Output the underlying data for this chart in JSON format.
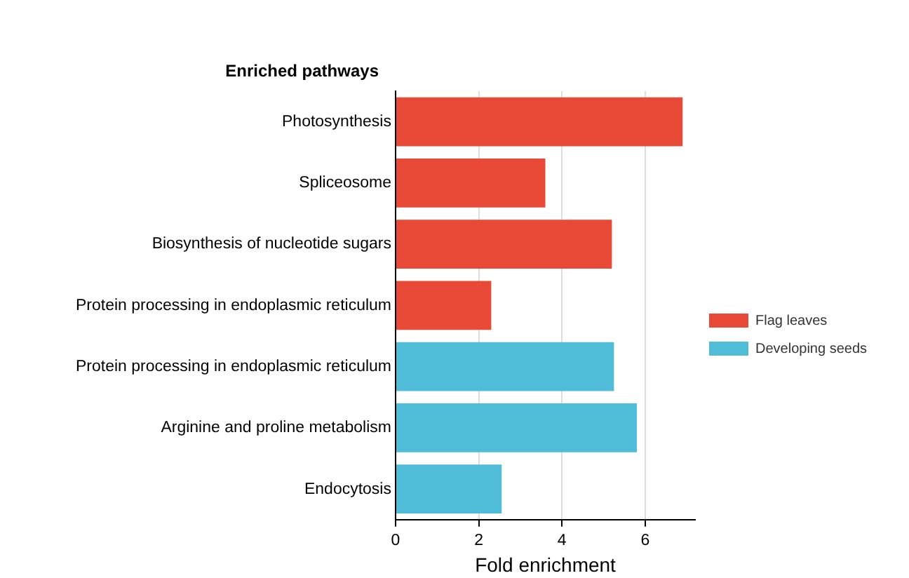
{
  "chart_data": {
    "type": "bar",
    "orientation": "horizontal",
    "ylabel": "Enriched pathways",
    "xlabel": "Fold enrichment",
    "categories": [
      "Photosynthesis",
      "Spliceosome",
      "Biosynthesis of nucleotide sugars",
      "Protein processing in endoplasmic reticulum",
      "Protein processing in endoplasmic reticulum",
      "Arginine and proline metabolism",
      "Endocytosis"
    ],
    "series": [
      {
        "name": "Flag leaves",
        "color": "#e84a37",
        "values": [
          6.9,
          3.6,
          5.2,
          2.3,
          null,
          null,
          null
        ]
      },
      {
        "name": "Developing seeds",
        "color": "#4fbcd8",
        "values": [
          null,
          null,
          null,
          null,
          5.25,
          5.8,
          2.55
        ]
      }
    ],
    "xlim": [
      0,
      7.2
    ],
    "xticks": [
      0,
      2,
      4,
      6
    ],
    "grid": "x",
    "legend": "right"
  }
}
